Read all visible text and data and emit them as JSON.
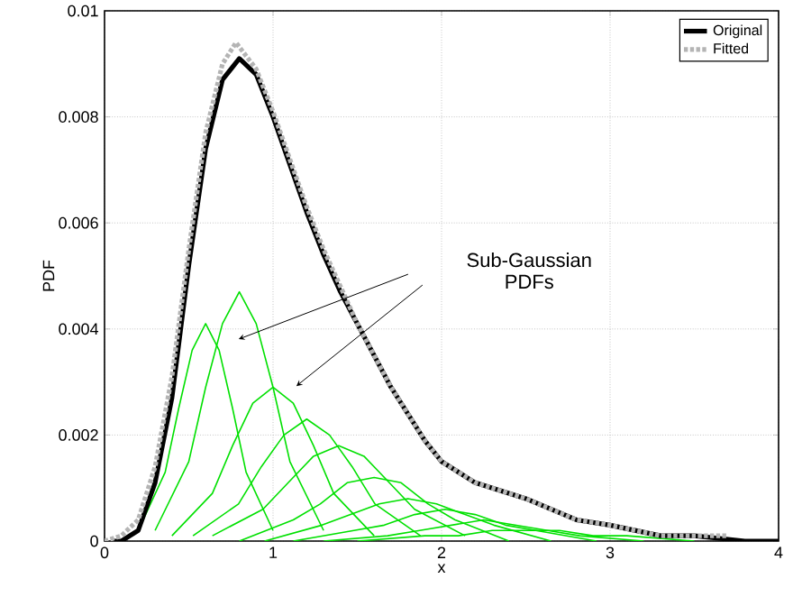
{
  "chart_data": {
    "type": "line",
    "xlabel": "x",
    "ylabel": "PDF",
    "xlim": [
      0,
      4
    ],
    "ylim": [
      0,
      0.01
    ],
    "xticks": [
      0,
      1,
      2,
      3,
      4
    ],
    "yticks": [
      0,
      0.002,
      0.004,
      0.006,
      0.008,
      0.01
    ],
    "grid": true,
    "legend": "top right",
    "marker": "none",
    "annotations": [
      "Sub-Gaussian PDFs"
    ],
    "series": [
      {
        "color": "#00e000",
        "x": [
          0.2,
          0.36,
          0.44,
          0.52,
          0.6,
          0.68,
          0.76,
          0.84,
          1.0
        ],
        "values": [
          0.0002,
          0.0013,
          0.0025,
          0.0036,
          0.0041,
          0.0036,
          0.0025,
          0.0013,
          0.0002
        ]
      },
      {
        "color": "#00e000",
        "x": [
          0.3,
          0.5,
          0.6,
          0.7,
          0.8,
          0.9,
          1.0,
          1.1,
          1.3
        ],
        "values": [
          0.0002,
          0.0015,
          0.0029,
          0.0041,
          0.0047,
          0.0041,
          0.0029,
          0.0015,
          0.0002
        ]
      },
      {
        "color": "#00e000",
        "x": [
          0.4,
          0.64,
          0.76,
          0.88,
          1.0,
          1.12,
          1.24,
          1.36,
          1.6
        ],
        "values": [
          0.0001,
          0.0009,
          0.0018,
          0.0026,
          0.0029,
          0.0026,
          0.0018,
          0.0009,
          0.0001
        ]
      },
      {
        "color": "#00e000",
        "x": [
          0.525,
          0.795,
          0.93,
          1.065,
          1.2,
          1.335,
          1.47,
          1.605,
          1.875
        ],
        "values": [
          0.0001,
          0.0007,
          0.0014,
          0.002,
          0.0023,
          0.002,
          0.0014,
          0.0007,
          0.0001
        ]
      },
      {
        "color": "#00e000",
        "x": [
          0.64,
          0.94,
          1.09,
          1.24,
          1.39,
          1.54,
          1.69,
          1.84,
          2.14
        ],
        "values": [
          0.0001,
          0.0006,
          0.0011,
          0.0016,
          0.0018,
          0.0016,
          0.0011,
          0.0006,
          0.0001
        ]
      },
      {
        "color": "#00e000",
        "x": [
          0.8,
          1.12,
          1.28,
          1.44,
          1.6,
          1.76,
          1.92,
          2.08,
          2.4
        ],
        "values": [
          0,
          0.0004,
          0.0007,
          0.0011,
          0.0012,
          0.0011,
          0.0007,
          0.0004,
          0
        ]
      },
      {
        "color": "#00e000",
        "x": [
          0.95,
          1.29,
          1.46,
          1.63,
          1.8,
          1.97,
          2.14,
          2.31,
          2.65
        ],
        "values": [
          0,
          0.0003,
          0.0005,
          0.0007,
          0.0008,
          0.0007,
          0.0005,
          0.0003,
          0
        ]
      },
      {
        "color": "#00e000",
        "x": [
          1.12,
          1.48,
          1.66,
          1.84,
          2.02,
          2.2,
          2.38,
          2.56,
          2.92
        ],
        "values": [
          0,
          0.0002,
          0.0003,
          0.0005,
          0.0006,
          0.0005,
          0.0003,
          0.0002,
          0
        ]
      },
      {
        "color": "#00e000",
        "x": [
          1.3,
          1.68,
          1.87,
          2.06,
          2.25,
          2.44,
          2.63,
          2.82,
          3.2
        ],
        "values": [
          0,
          0.0001,
          0.0002,
          0.0003,
          0.0004,
          0.0003,
          0.0002,
          0.0001,
          0
        ]
      },
      {
        "color": "#00e000",
        "x": [
          1.5,
          1.9,
          2.1,
          2.3,
          2.5,
          2.7,
          2.9,
          3.1,
          3.5
        ],
        "values": [
          0,
          0.0001,
          0.0001,
          0.0002,
          0.0002,
          0.0002,
          0.0001,
          0.0001,
          0
        ]
      },
      {
        "name": "Original",
        "color": "#000000",
        "line_style": "solid",
        "x": [
          0.05,
          0.1,
          0.2,
          0.3,
          0.4,
          0.5,
          0.6,
          0.7,
          0.8,
          0.9,
          1.0,
          1.1,
          1.2,
          1.3,
          1.4,
          1.5,
          1.6,
          1.7,
          1.8,
          1.9,
          2.0,
          2.2,
          2.5,
          2.8,
          3.0,
          3.3,
          3.5,
          3.8,
          4.0
        ],
        "values": [
          0,
          0,
          0.0002,
          0.0011,
          0.0027,
          0.0052,
          0.0074,
          0.0087,
          0.0091,
          0.0088,
          0.008,
          0.0071,
          0.0062,
          0.0054,
          0.0047,
          0.0041,
          0.0035,
          0.0029,
          0.0024,
          0.0019,
          0.0015,
          0.0011,
          0.0008,
          0.0004,
          0.0003,
          0.0001,
          0.0001,
          0,
          0
        ]
      },
      {
        "name": "Fitted",
        "color": "#b4b4b4",
        "line_style": "dashed",
        "x": [
          0,
          0.1,
          0.2,
          0.3,
          0.4,
          0.5,
          0.6,
          0.7,
          0.78,
          0.9,
          1.0,
          1.1,
          1.2,
          1.3,
          1.4,
          1.5,
          1.6,
          1.7,
          1.8,
          1.9,
          2.0,
          2.2,
          2.5,
          2.8,
          3.0,
          3.3,
          3.5,
          3.7
        ],
        "values": [
          0,
          0.0001,
          0.0004,
          0.0014,
          0.0031,
          0.0055,
          0.0077,
          0.009,
          0.0094,
          0.0089,
          0.0081,
          0.0072,
          0.0063,
          0.0055,
          0.0048,
          0.0041,
          0.0035,
          0.0029,
          0.0024,
          0.0019,
          0.0015,
          0.0011,
          0.0008,
          0.0004,
          0.0003,
          0.0001,
          0.0001,
          0.0001
        ]
      }
    ]
  }
}
